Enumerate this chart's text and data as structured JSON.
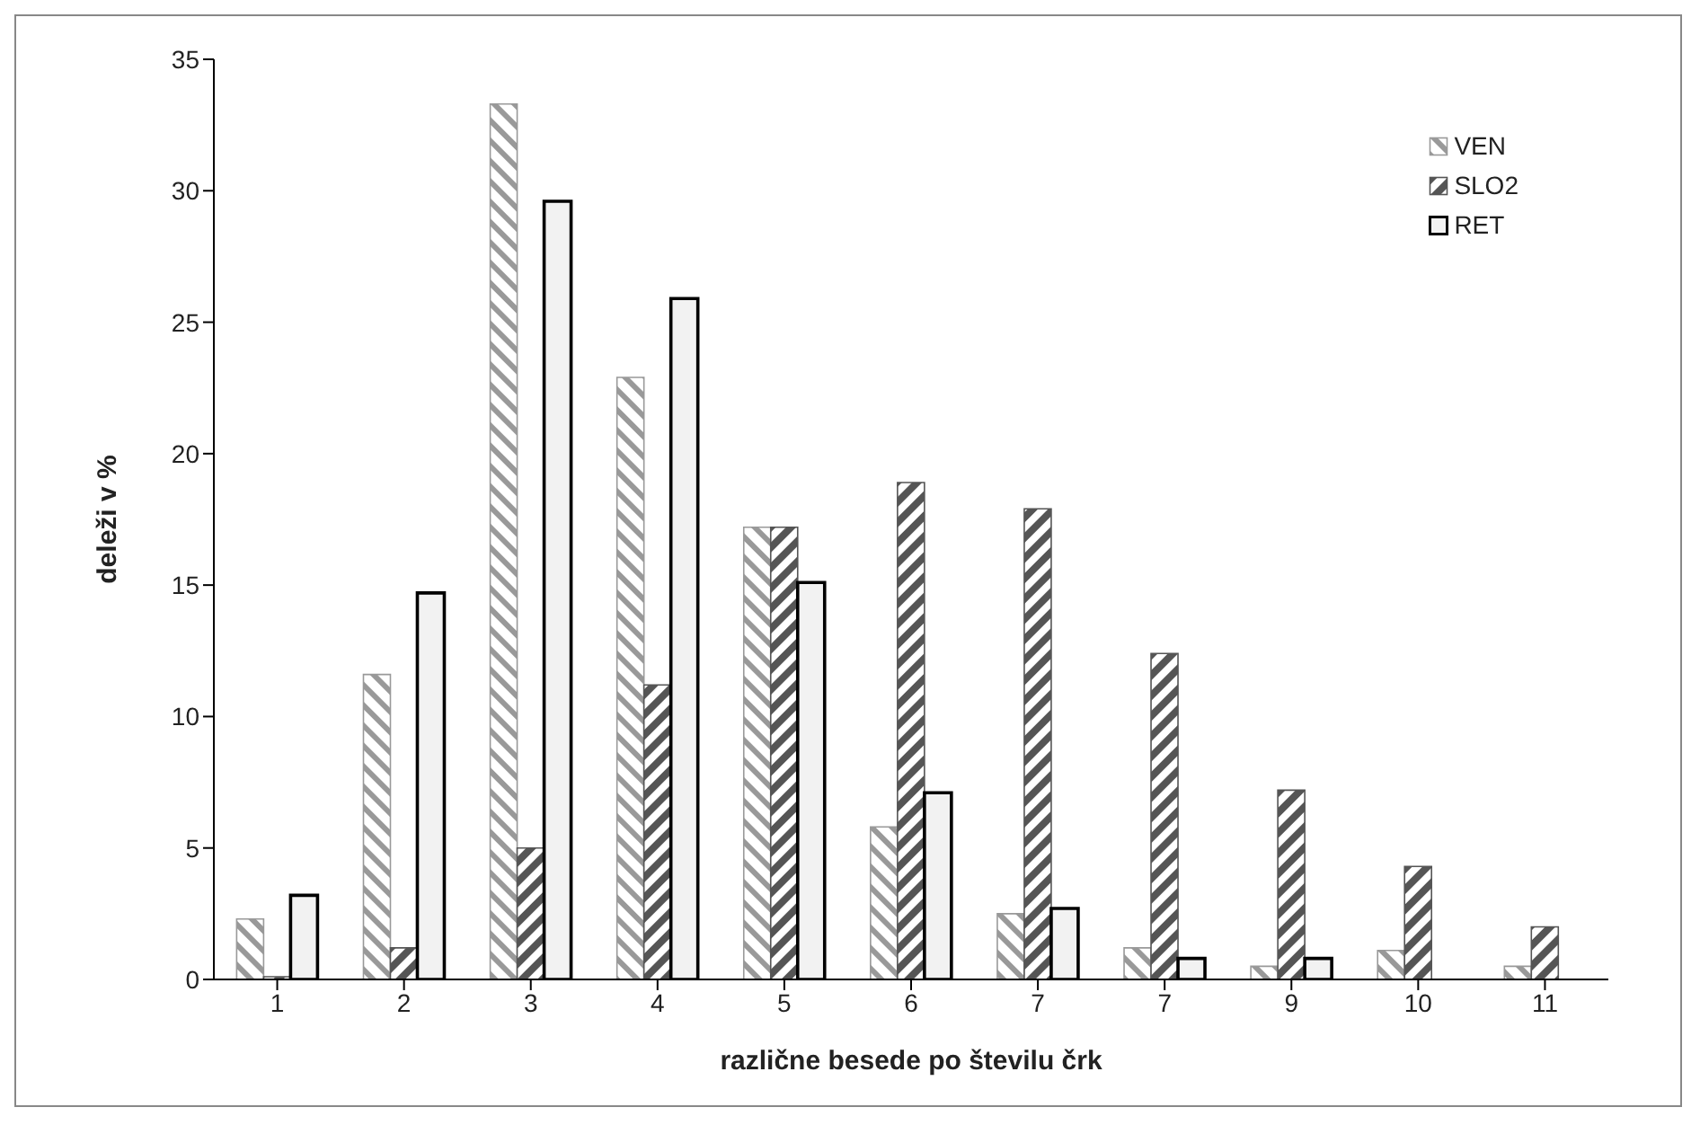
{
  "chart_data": {
    "type": "bar",
    "xlabel": "različne besede po številu črk",
    "ylabel": "deleži v %",
    "categories": [
      "1",
      "2",
      "3",
      "4",
      "5",
      "6",
      "7",
      "7",
      "9",
      "10",
      "11"
    ],
    "series": [
      {
        "name": "VEN",
        "color": "#999999",
        "values": [
          2.3,
          11.6,
          33.3,
          22.9,
          17.2,
          5.8,
          2.5,
          1.2,
          0.5,
          1.1,
          0.5
        ]
      },
      {
        "name": "SLO2",
        "color": "#555555",
        "values": [
          0.1,
          1.2,
          5.0,
          11.2,
          17.2,
          18.9,
          17.9,
          12.4,
          7.2,
          4.3,
          2.0
        ]
      },
      {
        "name": "RET",
        "color": "#f2f2f2",
        "values": [
          3.2,
          14.7,
          29.6,
          25.9,
          15.1,
          7.1,
          2.7,
          0.8,
          0.8,
          0,
          0
        ]
      }
    ],
    "ylim": [
      0,
      35
    ],
    "yticks": [
      0,
      5,
      10,
      15,
      20,
      25,
      30,
      35
    ],
    "grid": false,
    "legend": "top right"
  }
}
